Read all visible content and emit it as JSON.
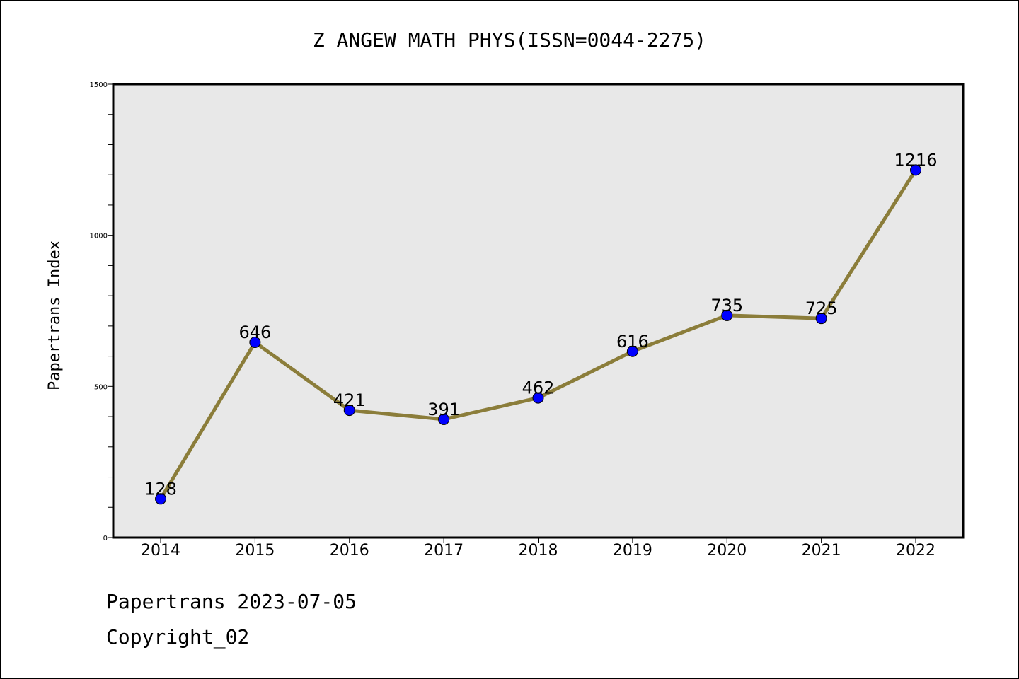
{
  "chart_data": {
    "type": "line",
    "title": "Z ANGEW MATH PHYS(ISSN=0044-2275)",
    "xlabel": "",
    "ylabel": "Papertrans Index",
    "categories": [
      "2014",
      "2015",
      "2016",
      "2017",
      "2018",
      "2019",
      "2020",
      "2021",
      "2022"
    ],
    "series": [
      {
        "values": [
          128,
          646,
          421,
          391,
          462,
          616,
          735,
          725,
          1216
        ],
        "labels": [
          "128",
          "646",
          "421",
          "391",
          "462",
          "616",
          "735",
          "725",
          "1216"
        ]
      }
    ],
    "ylim": [
      0,
      1500
    ],
    "yticks": [
      0,
      500,
      1000,
      1500
    ],
    "ytick_labels": [
      "0",
      "500",
      "1000",
      "1500"
    ],
    "grid": false,
    "colors": {
      "line": "#8b7d3a",
      "marker": "#0000ff",
      "plot_background": "#e8e8e8"
    }
  },
  "footer": {
    "line1": "Papertrans 2023-07-05",
    "line2": "Copyright_02"
  }
}
